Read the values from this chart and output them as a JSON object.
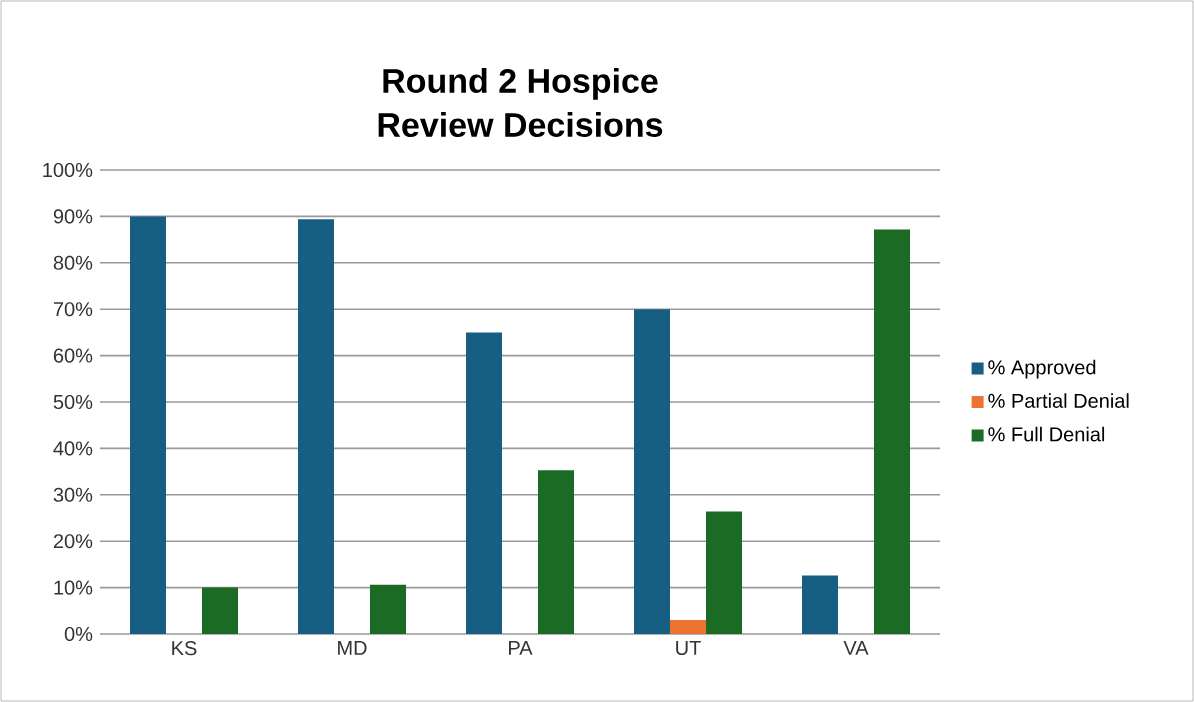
{
  "chart_data": {
    "type": "bar",
    "title": "Round 2 Hospice Review Decisions",
    "categories": [
      "KS",
      "MD",
      "PA",
      "UT",
      "VA"
    ],
    "series": [
      {
        "name": "% Approved",
        "color": "#175f82",
        "values": [
          90,
          89.4,
          65,
          70,
          12.6
        ]
      },
      {
        "name": "% Partial Denial",
        "color": "#ed7332",
        "values": [
          0,
          0,
          0,
          3,
          0
        ]
      },
      {
        "name": "% Full Denial",
        "color": "#1b6b25",
        "values": [
          10,
          10.6,
          35.3,
          26.4,
          87.2
        ]
      }
    ],
    "ylim": [
      0,
      100
    ],
    "yticks": [
      {
        "value": 0,
        "label": "0%"
      },
      {
        "value": 10,
        "label": "10%"
      },
      {
        "value": 20,
        "label": "20%"
      },
      {
        "value": 30,
        "label": "30%"
      },
      {
        "value": 40,
        "label": "40%"
      },
      {
        "value": 50,
        "label": "50%"
      },
      {
        "value": 60,
        "label": "60%"
      },
      {
        "value": 70,
        "label": "70%"
      },
      {
        "value": 80,
        "label": "80%"
      },
      {
        "value": 90,
        "label": "90%"
      },
      {
        "value": 100,
        "label": "100%"
      }
    ],
    "grid": "y",
    "legend": "right"
  }
}
